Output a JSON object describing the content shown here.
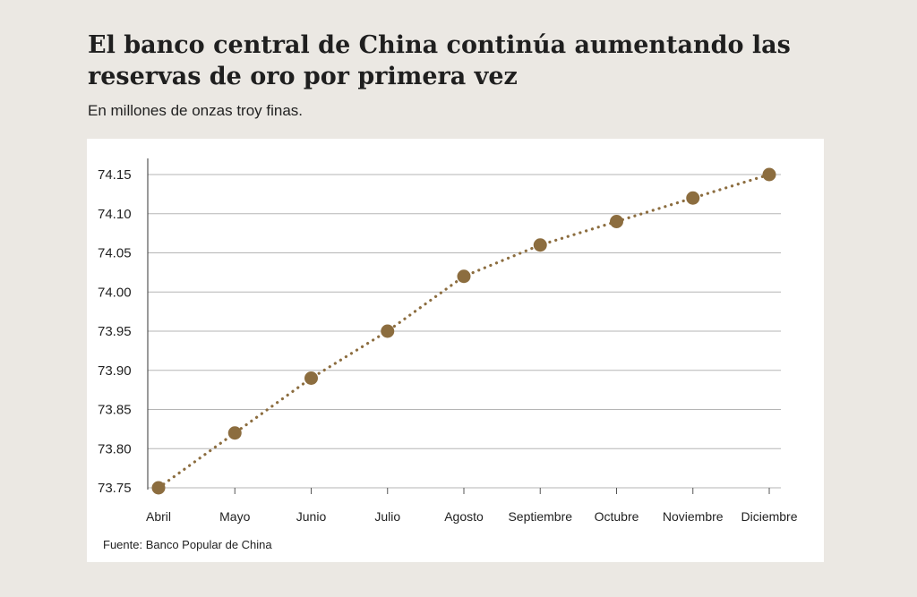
{
  "title": "El banco central de China continúa aumentando las reservas de oro por primera vez",
  "subtitle": "En millones de onzas troy finas.",
  "source": "Fuente: Banco Popular de China",
  "colors": {
    "background": "#ebe8e3",
    "panel": "#ffffff",
    "series": "#8c6d3f",
    "grid": "#b5b5b5"
  },
  "chart_data": {
    "type": "line",
    "categories": [
      "Abril",
      "Mayo",
      "Junio",
      "Julio",
      "Agosto",
      "Septiembre",
      "Octubre",
      "Noviembre",
      "Diciembre"
    ],
    "series": [
      {
        "values": [
          73.75,
          73.82,
          73.89,
          73.95,
          74.02,
          74.06,
          74.09,
          74.12,
          74.15
        ]
      }
    ],
    "ylim": [
      73.75,
      74.15
    ],
    "yticks": [
      "73.75",
      "73.80",
      "73.85",
      "73.90",
      "73.95",
      "74.00",
      "74.05",
      "74.10",
      "74.15"
    ],
    "grid": true,
    "line_style": "dotted",
    "markers": "circle"
  }
}
